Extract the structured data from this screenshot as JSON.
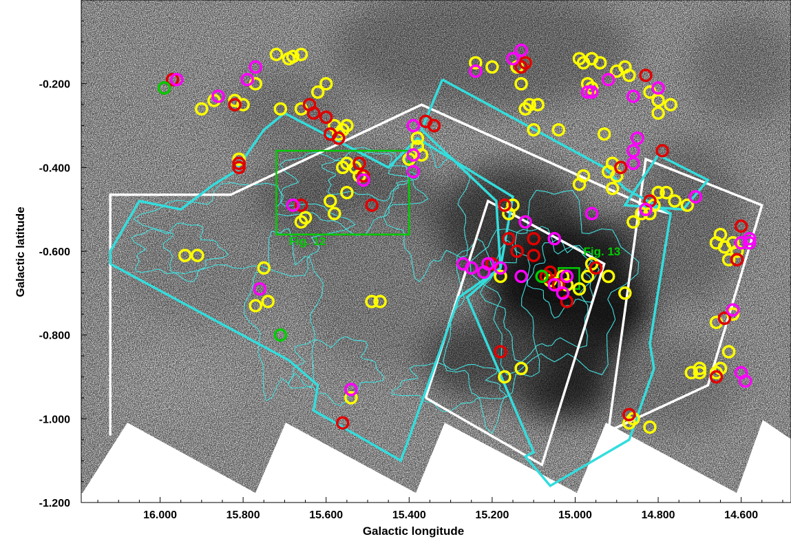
{
  "chart_data": {
    "type": "scatter",
    "background": "grayscale infrared survey image of the Galactic plane",
    "xlabel": "Galactic longitude",
    "ylabel": "Galactic latitude",
    "xlim": [
      16.19,
      14.48
    ],
    "ylim": [
      -1.2,
      0.0
    ],
    "x_ticks": [
      16.0,
      15.8,
      15.6,
      15.4,
      15.2,
      15.0,
      14.8,
      14.6
    ],
    "x_tick_labels": [
      "16.000",
      "15.800",
      "15.600",
      "15.400",
      "15.200",
      "15.000",
      "14.800",
      "14.600"
    ],
    "y_ticks": [
      -0.2,
      -0.4,
      -0.6,
      -0.8,
      -1.0,
      -1.2
    ],
    "y_tick_labels": [
      "-0.200",
      "-0.400",
      "-0.600",
      "-0.800",
      "-1.000",
      "-1.200"
    ],
    "colors": {
      "yellow": "#ffff00",
      "red": "#e00000",
      "magenta": "#ff00ff",
      "green": "#00cc00",
      "cyan": "#33dddd",
      "white": "#ffffff",
      "contour": "#44e0e0"
    },
    "annotations": [
      {
        "text": "Fig. 12",
        "l": 15.69,
        "b": -0.585,
        "color": "#00cc00"
      },
      {
        "text": "Fig. 13",
        "l": 14.98,
        "b": -0.61,
        "color": "#00cc00"
      }
    ],
    "boxes": [
      {
        "name": "fig12-box",
        "color": "#00cc00",
        "l_min": 15.4,
        "l_max": 15.72,
        "b_min": -0.56,
        "b_max": -0.36
      },
      {
        "name": "fig13-box",
        "color": "#00cc00",
        "l_min": 14.99,
        "l_max": 15.04,
        "b_min": -0.69,
        "b_max": -0.64
      }
    ],
    "footprints": [
      {
        "name": "white-footprint-1",
        "color": "#ffffff",
        "vertices": [
          [
            16.12,
            -1.04
          ],
          [
            16.12,
            -0.465
          ],
          [
            15.83,
            -0.465
          ],
          [
            15.37,
            -0.25
          ],
          [
            14.81,
            -0.5
          ],
          [
            14.77,
            -0.51
          ]
        ]
      },
      {
        "name": "white-footprint-2",
        "color": "#ffffff",
        "vertices": [
          [
            15.36,
            -0.95
          ],
          [
            15.08,
            -1.11
          ],
          [
            14.93,
            -0.63
          ],
          [
            15.21,
            -0.48
          ],
          [
            15.36,
            -0.95
          ]
        ]
      },
      {
        "name": "white-footprint-3",
        "color": "#ffffff",
        "vertices": [
          [
            14.92,
            -1.03
          ],
          [
            14.68,
            -0.92
          ],
          [
            14.55,
            -0.49
          ],
          [
            14.83,
            -0.38
          ],
          [
            14.92,
            -1.03
          ]
        ]
      },
      {
        "name": "cyan-footprint-1",
        "color": "#33dddd",
        "vertices": [
          [
            16.12,
            -0.63
          ],
          [
            15.69,
            -0.86
          ],
          [
            15.62,
            -0.92
          ],
          [
            15.63,
            -0.98
          ],
          [
            15.42,
            -1.1
          ],
          [
            15.28,
            -0.71
          ],
          [
            15.18,
            -0.64
          ],
          [
            15.15,
            -0.47
          ],
          [
            15.38,
            -0.33
          ],
          [
            15.42,
            -0.37
          ],
          [
            15.45,
            -0.4
          ],
          [
            15.7,
            -0.27
          ],
          [
            15.75,
            -0.31
          ],
          [
            15.82,
            -0.41
          ],
          [
            15.87,
            -0.44
          ],
          [
            15.95,
            -0.5
          ],
          [
            16.05,
            -0.48
          ],
          [
            16.12,
            -0.6
          ],
          [
            16.12,
            -0.63
          ]
        ]
      },
      {
        "name": "cyan-footprint-2",
        "color": "#33dddd",
        "vertices": [
          [
            15.32,
            -0.19
          ],
          [
            14.93,
            -0.4
          ],
          [
            14.88,
            -0.45
          ],
          [
            14.77,
            -0.51
          ],
          [
            14.82,
            -0.82
          ],
          [
            14.81,
            -0.88
          ],
          [
            14.87,
            -1.05
          ],
          [
            15.06,
            -1.16
          ],
          [
            15.12,
            -1.09
          ],
          [
            15.1,
            -1.08
          ],
          [
            15.26,
            -0.71
          ],
          [
            15.18,
            -0.64
          ],
          [
            15.19,
            -0.48
          ],
          [
            15.37,
            -0.31
          ],
          [
            15.32,
            -0.19
          ]
        ]
      },
      {
        "name": "cyan-footprint-3",
        "color": "#33dddd",
        "vertices": [
          [
            14.8,
            -0.37
          ],
          [
            14.68,
            -0.43
          ],
          [
            14.74,
            -0.5
          ],
          [
            14.88,
            -0.49
          ],
          [
            14.8,
            -0.37
          ]
        ]
      }
    ],
    "series": [
      {
        "name": "yellow",
        "color": "#ffff00",
        "points": [
          [
            15.66,
            -0.13
          ],
          [
            15.68,
            -0.135
          ],
          [
            15.69,
            -0.14
          ],
          [
            15.72,
            -0.13
          ],
          [
            15.77,
            -0.2
          ],
          [
            15.8,
            -0.25
          ],
          [
            15.82,
            -0.24
          ],
          [
            15.87,
            -0.24
          ],
          [
            15.9,
            -0.26
          ],
          [
            15.66,
            -0.26
          ],
          [
            15.71,
            -0.26
          ],
          [
            15.62,
            -0.22
          ],
          [
            15.6,
            -0.2
          ],
          [
            15.58,
            -0.3
          ],
          [
            15.57,
            -0.32
          ],
          [
            15.56,
            -0.31
          ],
          [
            15.55,
            -0.3
          ],
          [
            15.81,
            -0.38
          ],
          [
            15.55,
            -0.39
          ],
          [
            15.56,
            -0.4
          ],
          [
            15.53,
            -0.4
          ],
          [
            15.52,
            -0.42
          ],
          [
            15.55,
            -0.46
          ],
          [
            15.59,
            -0.48
          ],
          [
            15.58,
            -0.51
          ],
          [
            15.65,
            -0.52
          ],
          [
            15.66,
            -0.53
          ],
          [
            15.38,
            -0.35
          ],
          [
            15.37,
            -0.37
          ],
          [
            15.4,
            -0.38
          ],
          [
            15.38,
            -0.33
          ],
          [
            15.91,
            -0.61
          ],
          [
            15.94,
            -0.61
          ],
          [
            15.75,
            -0.64
          ],
          [
            15.74,
            -0.72
          ],
          [
            15.77,
            -0.73
          ],
          [
            15.49,
            -0.72
          ],
          [
            15.47,
            -0.72
          ],
          [
            15.54,
            -0.95
          ],
          [
            15.17,
            -0.9
          ],
          [
            15.13,
            -0.88
          ],
          [
            15.15,
            -0.49
          ],
          [
            15.16,
            -0.51
          ],
          [
            15.18,
            -0.66
          ],
          [
            15.06,
            -0.67
          ],
          [
            15.02,
            -0.68
          ],
          [
            15.03,
            -0.66
          ],
          [
            14.99,
            -0.69
          ],
          [
            14.97,
            -0.66
          ],
          [
            14.96,
            -0.63
          ],
          [
            14.92,
            -0.66
          ],
          [
            14.88,
            -0.7
          ],
          [
            15.24,
            -0.15
          ],
          [
            15.2,
            -0.16
          ],
          [
            15.14,
            -0.16
          ],
          [
            15.12,
            -0.15
          ],
          [
            15.13,
            -0.2
          ],
          [
            15.12,
            -0.26
          ],
          [
            15.11,
            -0.25
          ],
          [
            15.1,
            -0.31
          ],
          [
            15.04,
            -0.31
          ],
          [
            15.09,
            -0.25
          ],
          [
            14.99,
            -0.14
          ],
          [
            14.98,
            -0.15
          ],
          [
            14.96,
            -0.14
          ],
          [
            14.94,
            -0.15
          ],
          [
            14.97,
            -0.2
          ],
          [
            14.96,
            -0.21
          ],
          [
            14.92,
            -0.19
          ],
          [
            14.9,
            -0.17
          ],
          [
            14.88,
            -0.16
          ],
          [
            14.87,
            -0.18
          ],
          [
            14.82,
            -0.22
          ],
          [
            14.8,
            -0.27
          ],
          [
            14.8,
            -0.24
          ],
          [
            14.77,
            -0.25
          ],
          [
            14.93,
            -0.32
          ],
          [
            14.91,
            -0.39
          ],
          [
            14.92,
            -0.41
          ],
          [
            14.9,
            -0.42
          ],
          [
            14.91,
            -0.45
          ],
          [
            14.99,
            -0.44
          ],
          [
            14.98,
            -0.42
          ],
          [
            14.86,
            -0.53
          ],
          [
            14.84,
            -0.51
          ],
          [
            14.82,
            -0.51
          ],
          [
            14.81,
            -0.49
          ],
          [
            14.8,
            -0.46
          ],
          [
            14.78,
            -0.46
          ],
          [
            14.76,
            -0.48
          ],
          [
            14.73,
            -0.49
          ],
          [
            14.61,
            -0.6
          ],
          [
            14.64,
            -0.59
          ],
          [
            14.62,
            -0.58
          ],
          [
            14.66,
            -0.58
          ],
          [
            14.65,
            -0.56
          ],
          [
            14.63,
            -0.62
          ],
          [
            14.62,
            -0.75
          ],
          [
            14.66,
            -0.77
          ],
          [
            14.63,
            -0.84
          ],
          [
            14.65,
            -0.88
          ],
          [
            14.66,
            -0.89
          ],
          [
            14.7,
            -0.89
          ],
          [
            14.72,
            -0.89
          ],
          [
            14.7,
            -0.88
          ],
          [
            14.86,
            -1.0
          ],
          [
            14.87,
            -1.01
          ],
          [
            14.82,
            -1.02
          ]
        ]
      },
      {
        "name": "red",
        "color": "#e00000",
        "points": [
          [
            15.97,
            -0.19
          ],
          [
            15.99,
            -0.21
          ],
          [
            15.82,
            -0.25
          ],
          [
            15.81,
            -0.4
          ],
          [
            15.81,
            -0.39
          ],
          [
            15.64,
            -0.25
          ],
          [
            15.63,
            -0.27
          ],
          [
            15.6,
            -0.28
          ],
          [
            15.59,
            -0.32
          ],
          [
            15.57,
            -0.33
          ],
          [
            15.52,
            -0.39
          ],
          [
            15.51,
            -0.42
          ],
          [
            15.49,
            -0.49
          ],
          [
            15.66,
            -0.49
          ],
          [
            15.36,
            -0.29
          ],
          [
            15.34,
            -0.3
          ],
          [
            15.17,
            -0.49
          ],
          [
            15.13,
            -0.16
          ],
          [
            15.12,
            -0.15
          ],
          [
            15.16,
            -0.57
          ],
          [
            15.14,
            -0.6
          ],
          [
            15.1,
            -0.61
          ],
          [
            15.1,
            -0.57
          ],
          [
            15.06,
            -0.65
          ],
          [
            15.07,
            -0.66
          ],
          [
            15.04,
            -0.68
          ],
          [
            15.02,
            -0.72
          ],
          [
            15.2,
            -0.63
          ],
          [
            15.18,
            -0.84
          ],
          [
            14.95,
            -0.64
          ],
          [
            14.83,
            -0.18
          ],
          [
            14.79,
            -0.36
          ],
          [
            14.89,
            -0.4
          ],
          [
            14.82,
            -0.48
          ],
          [
            14.66,
            -0.9
          ],
          [
            14.64,
            -0.76
          ],
          [
            14.61,
            -0.62
          ],
          [
            14.6,
            -0.54
          ],
          [
            14.87,
            -0.99
          ],
          [
            15.56,
            -1.01
          ]
        ]
      },
      {
        "name": "magenta",
        "color": "#ff00ff",
        "points": [
          [
            15.96,
            -0.19
          ],
          [
            15.86,
            -0.23
          ],
          [
            15.79,
            -0.19
          ],
          [
            15.77,
            -0.16
          ],
          [
            15.13,
            -0.12
          ],
          [
            15.15,
            -0.14
          ],
          [
            15.24,
            -0.17
          ],
          [
            15.39,
            -0.3
          ],
          [
            15.39,
            -0.37
          ],
          [
            15.39,
            -0.41
          ],
          [
            15.51,
            -0.43
          ],
          [
            15.68,
            -0.49
          ],
          [
            15.12,
            -0.53
          ],
          [
            15.05,
            -0.57
          ],
          [
            15.02,
            -0.66
          ],
          [
            15.03,
            -0.7
          ],
          [
            15.05,
            -0.68
          ],
          [
            15.13,
            -0.66
          ],
          [
            15.18,
            -0.64
          ],
          [
            15.21,
            -0.63
          ],
          [
            15.22,
            -0.65
          ],
          [
            15.25,
            -0.64
          ],
          [
            15.27,
            -0.63
          ],
          [
            14.97,
            -0.22
          ],
          [
            14.96,
            -0.22
          ],
          [
            14.92,
            -0.19
          ],
          [
            14.86,
            -0.23
          ],
          [
            14.8,
            -0.21
          ],
          [
            14.85,
            -0.33
          ],
          [
            14.86,
            -0.36
          ],
          [
            14.86,
            -0.39
          ],
          [
            14.96,
            -0.51
          ],
          [
            14.83,
            -0.5
          ],
          [
            14.71,
            -0.47
          ],
          [
            14.58,
            -0.58
          ],
          [
            14.58,
            -0.57
          ],
          [
            14.6,
            -0.58
          ],
          [
            14.62,
            -0.74
          ],
          [
            14.6,
            -0.89
          ],
          [
            14.59,
            -0.91
          ],
          [
            15.54,
            -0.93
          ],
          [
            15.76,
            -0.69
          ]
        ]
      },
      {
        "name": "green",
        "color": "#00cc00",
        "points": [
          [
            15.99,
            -0.21
          ],
          [
            15.71,
            -0.8
          ],
          [
            15.08,
            -0.66
          ]
        ]
      }
    ]
  }
}
